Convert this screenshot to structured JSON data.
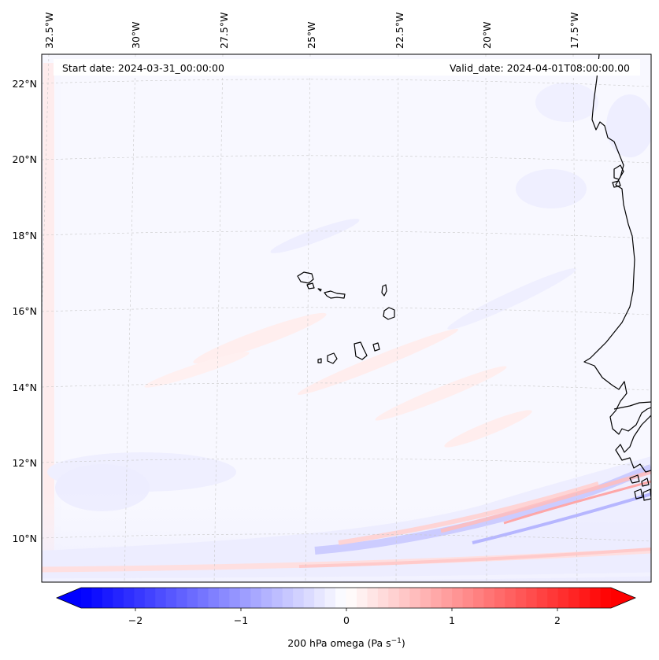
{
  "map": {
    "header": {
      "start_date": "Start date: 2024-03-31_00:00:00",
      "valid_date": "Valid_date: 2024-04-01T08:00:00.00"
    },
    "lon_labels": [
      "32.5°W",
      "30°W",
      "27.5°W",
      "25°W",
      "22.5°W",
      "20°W",
      "17.5°W"
    ],
    "lat_labels": [
      "22°N",
      "20°N",
      "18°N",
      "16°N",
      "14°N",
      "12°N",
      "10°N"
    ],
    "colorbar": {
      "ticks": [
        "−2",
        "−1",
        "0",
        "1",
        "2"
      ],
      "label": "200 hPa omega (Pa s",
      "label_sup": "−1",
      "label_end": ")",
      "range": [
        -2.7,
        2.7
      ],
      "colormap": "bwr",
      "neg_color": "#0000ff",
      "mid_color": "#ffffff",
      "pos_color": "#ff0000"
    }
  }
}
